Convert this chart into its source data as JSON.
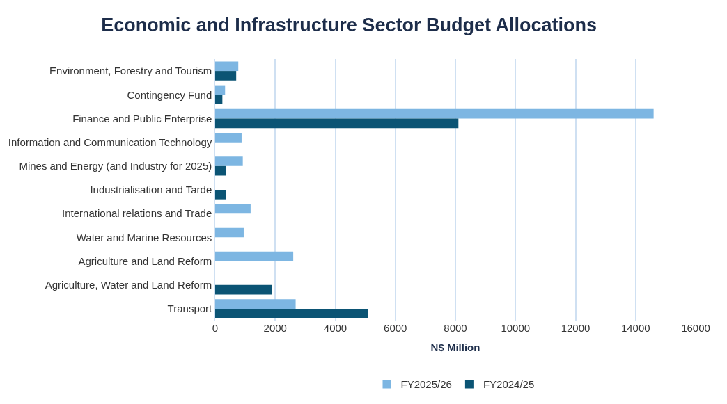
{
  "chart_data": {
    "type": "bar",
    "orientation": "horizontal",
    "title": "Economic and Infrastructure Sector Budget Allocations",
    "xlabel": "N$ Million",
    "categories": [
      "Environment, Forestry and Tourism",
      "Contingency Fund",
      "Finance and Public Enterprise",
      "Information and Communication Technology",
      "Mines and Energy (and Industry for 2025)",
      "Industrialisation and Tarde",
      "International relations and Trade",
      "Water and Marine Resources",
      "Agriculture and Land Reform",
      "Agriculture, Water and Land Reform",
      "Transport"
    ],
    "series": [
      {
        "name": "FY2025/26",
        "color": "#7db6e2",
        "values": [
          770,
          330,
          14600,
          880,
          920,
          null,
          1180,
          950,
          2600,
          null,
          2680
        ]
      },
      {
        "name": "FY2024/25",
        "color": "#0b5474",
        "values": [
          700,
          240,
          8100,
          null,
          360,
          350,
          null,
          null,
          null,
          1890,
          5090
        ]
      }
    ],
    "xlim": [
      0,
      16000
    ],
    "xticks": [
      0,
      2000,
      4000,
      6000,
      8000,
      10000,
      12000,
      14000,
      16000
    ],
    "grid": "x",
    "legend": "bottom"
  }
}
